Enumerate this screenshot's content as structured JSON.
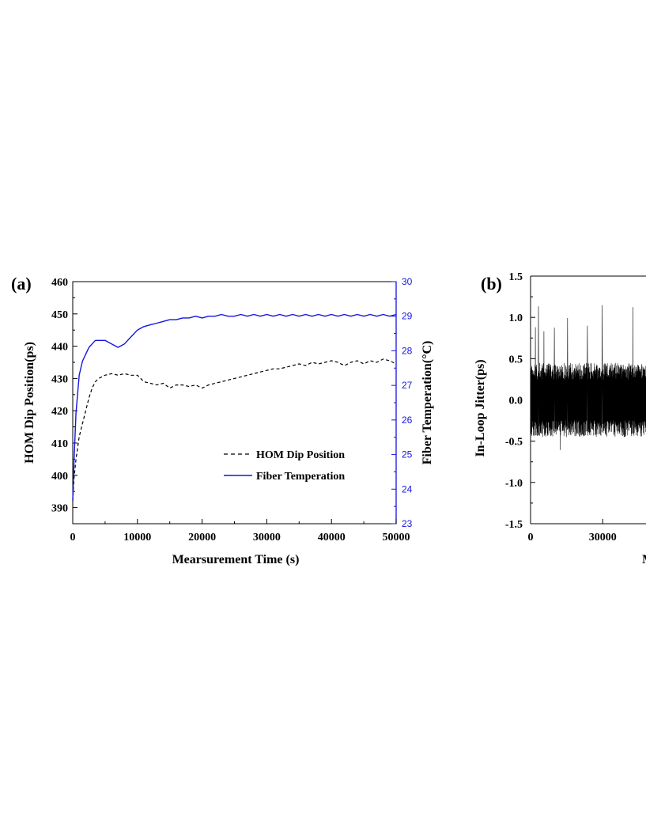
{
  "chart_data": [
    {
      "panel_label": "(a)",
      "type": "line",
      "xlabel": "Mearsurement Time (s)",
      "ylabel_left": "HOM Dip Position(ps)",
      "ylabel_right": "Fiber Temperation(°C)",
      "xlim": [
        0,
        50000
      ],
      "ylim_left": [
        385,
        460
      ],
      "ylim_right": [
        23,
        30
      ],
      "x_ticks": [
        "0",
        "10000",
        "20000",
        "30000",
        "40000",
        "50000"
      ],
      "y_ticks_left": [
        "390",
        "400",
        "410",
        "420",
        "430",
        "440",
        "450",
        "460"
      ],
      "y_ticks_right": [
        "23",
        "24",
        "25",
        "26",
        "27",
        "28",
        "29",
        "30"
      ],
      "legend_position": "lower-right",
      "grid": false,
      "colors": {
        "hom": "#000000",
        "temp": "#1515e0",
        "right_axis": "#1515e0"
      },
      "series": [
        {
          "name": "HOM Dip Position",
          "axis": "left",
          "style": "dashed",
          "x": [
            0,
            200,
            500,
            1000,
            1500,
            2000,
            2500,
            3000,
            3500,
            4000,
            5000,
            6000,
            7000,
            8000,
            9000,
            10000,
            11000,
            12000,
            13000,
            14000,
            15000,
            16000,
            17000,
            18000,
            19000,
            20000,
            21000,
            22000,
            23000,
            24000,
            25000,
            26000,
            27000,
            28000,
            29000,
            30000,
            31000,
            32000,
            33000,
            34000,
            35000,
            36000,
            37000,
            38000,
            39000,
            40000,
            41000,
            42000,
            43000,
            44000,
            45000,
            46000,
            47000,
            48000,
            49000,
            50000
          ],
          "y": [
            392,
            399,
            405,
            412,
            416,
            420,
            424,
            427,
            429,
            430,
            431,
            431.5,
            431,
            431.5,
            431,
            431,
            429,
            428.5,
            428,
            428.5,
            427,
            428,
            428,
            427.5,
            428,
            427,
            428,
            428.5,
            429,
            429.5,
            430,
            430.5,
            431,
            431.5,
            432,
            432.5,
            433,
            433,
            433.5,
            434,
            434.5,
            434,
            435,
            434.5,
            435,
            435.5,
            435,
            434,
            435,
            435.5,
            434.5,
            435.5,
            435,
            436,
            435.5,
            434.5
          ]
        },
        {
          "name": "Fiber Temperation",
          "axis": "right",
          "style": "solid",
          "x": [
            0,
            200,
            500,
            1000,
            1500,
            2000,
            2500,
            3000,
            3500,
            4000,
            5000,
            6000,
            7000,
            8000,
            9000,
            10000,
            11000,
            12000,
            13000,
            14000,
            15000,
            16000,
            17000,
            18000,
            19000,
            20000,
            21000,
            22000,
            23000,
            24000,
            25000,
            26000,
            27000,
            28000,
            29000,
            30000,
            31000,
            32000,
            33000,
            34000,
            35000,
            36000,
            37000,
            38000,
            39000,
            40000,
            41000,
            42000,
            43000,
            44000,
            45000,
            46000,
            47000,
            48000,
            49000,
            50000
          ],
          "y": [
            23.7,
            24.8,
            26.2,
            27.3,
            27.7,
            27.9,
            28.1,
            28.2,
            28.3,
            28.3,
            28.3,
            28.2,
            28.1,
            28.2,
            28.4,
            28.6,
            28.7,
            28.75,
            28.8,
            28.85,
            28.9,
            28.9,
            28.95,
            28.95,
            29.0,
            28.95,
            29.0,
            29.0,
            29.05,
            29.0,
            29.0,
            29.05,
            29.0,
            29.05,
            29.0,
            29.05,
            29.0,
            29.05,
            29.0,
            29.05,
            29.0,
            29.05,
            29.0,
            29.05,
            29.0,
            29.05,
            29.0,
            29.05,
            29.0,
            29.05,
            29.0,
            29.05,
            29.0,
            29.05,
            29.0,
            29.05
          ]
        }
      ]
    },
    {
      "panel_label": "(b)",
      "type": "line",
      "xlabel": "M",
      "ylabel": "In-Loop Jitter(ps)",
      "xlim": [
        0,
        48000
      ],
      "ylim": [
        -1.5,
        1.5
      ],
      "x_ticks": [
        "0",
        "30000"
      ],
      "y_ticks": [
        "1.5",
        "1.0",
        "0.5",
        "0.0",
        "-0.5",
        "-1.0",
        "-1.5"
      ],
      "grid": false,
      "series": [
        {
          "style": "solid",
          "x": [
            0,
            48000
          ],
          "band_center": 0.0,
          "band_typical": [
            -0.45,
            0.45
          ],
          "band_extreme": [
            -0.75,
            1.15
          ]
        }
      ]
    }
  ]
}
